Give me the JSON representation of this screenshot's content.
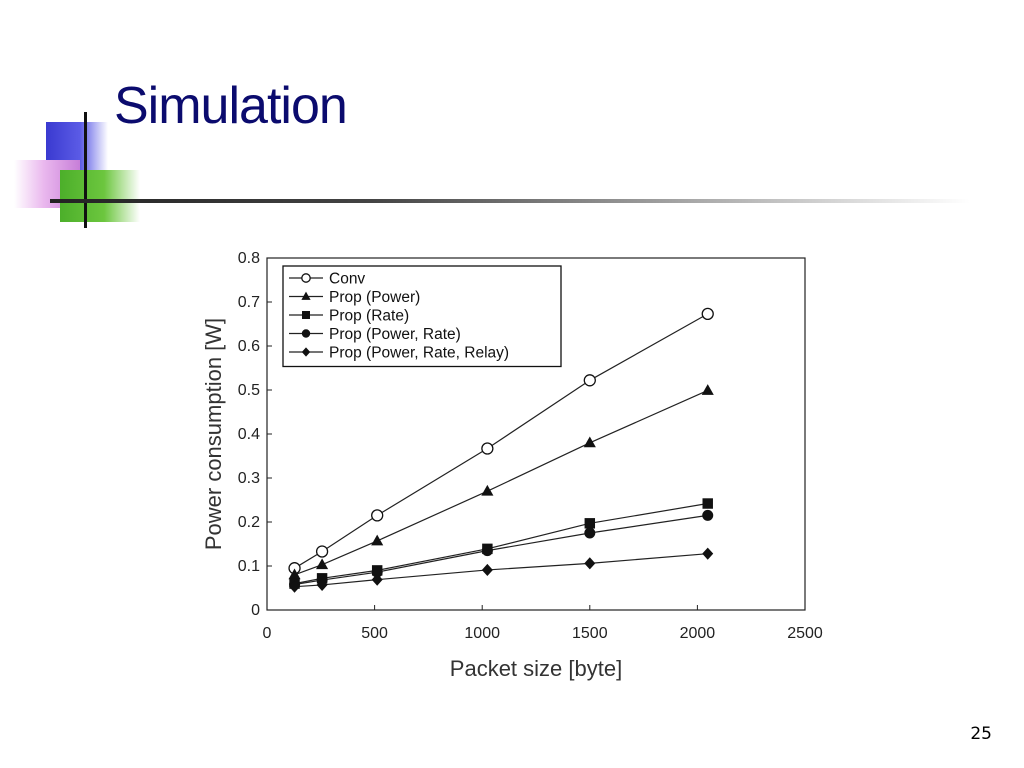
{
  "slide": {
    "title": "Simulation",
    "page_number": "25"
  },
  "chart_data": {
    "type": "line",
    "xlabel": "Packet size [byte]",
    "ylabel": "Power consumption [W]",
    "xlim": [
      0,
      2500
    ],
    "ylim": [
      0,
      0.8
    ],
    "xticks": [
      0,
      500,
      1000,
      1500,
      2000,
      2500
    ],
    "yticks": [
      0,
      0.1,
      0.2,
      0.3,
      0.4,
      0.5,
      0.6,
      0.7,
      0.8
    ],
    "grid": false,
    "legend_position": "top-left",
    "x": [
      128,
      256,
      512,
      1024,
      1500,
      2048
    ],
    "series": [
      {
        "name": "Conv",
        "marker": "circle-open",
        "values": [
          0.095,
          0.133,
          0.215,
          0.367,
          0.522,
          0.673
        ]
      },
      {
        "name": "Prop (Power)",
        "marker": "triangle",
        "values": [
          0.08,
          0.103,
          0.157,
          0.27,
          0.38,
          0.499
        ]
      },
      {
        "name": "Prop (Rate)",
        "marker": "square",
        "values": [
          0.06,
          0.072,
          0.09,
          0.139,
          0.197,
          0.242
        ]
      },
      {
        "name": "Prop (Power, Rate)",
        "marker": "circle",
        "values": [
          0.058,
          0.068,
          0.086,
          0.135,
          0.175,
          0.215
        ]
      },
      {
        "name": "Prop (Power, Rate, Relay)",
        "marker": "diamond",
        "values": [
          0.053,
          0.057,
          0.069,
          0.091,
          0.106,
          0.128
        ]
      }
    ]
  }
}
